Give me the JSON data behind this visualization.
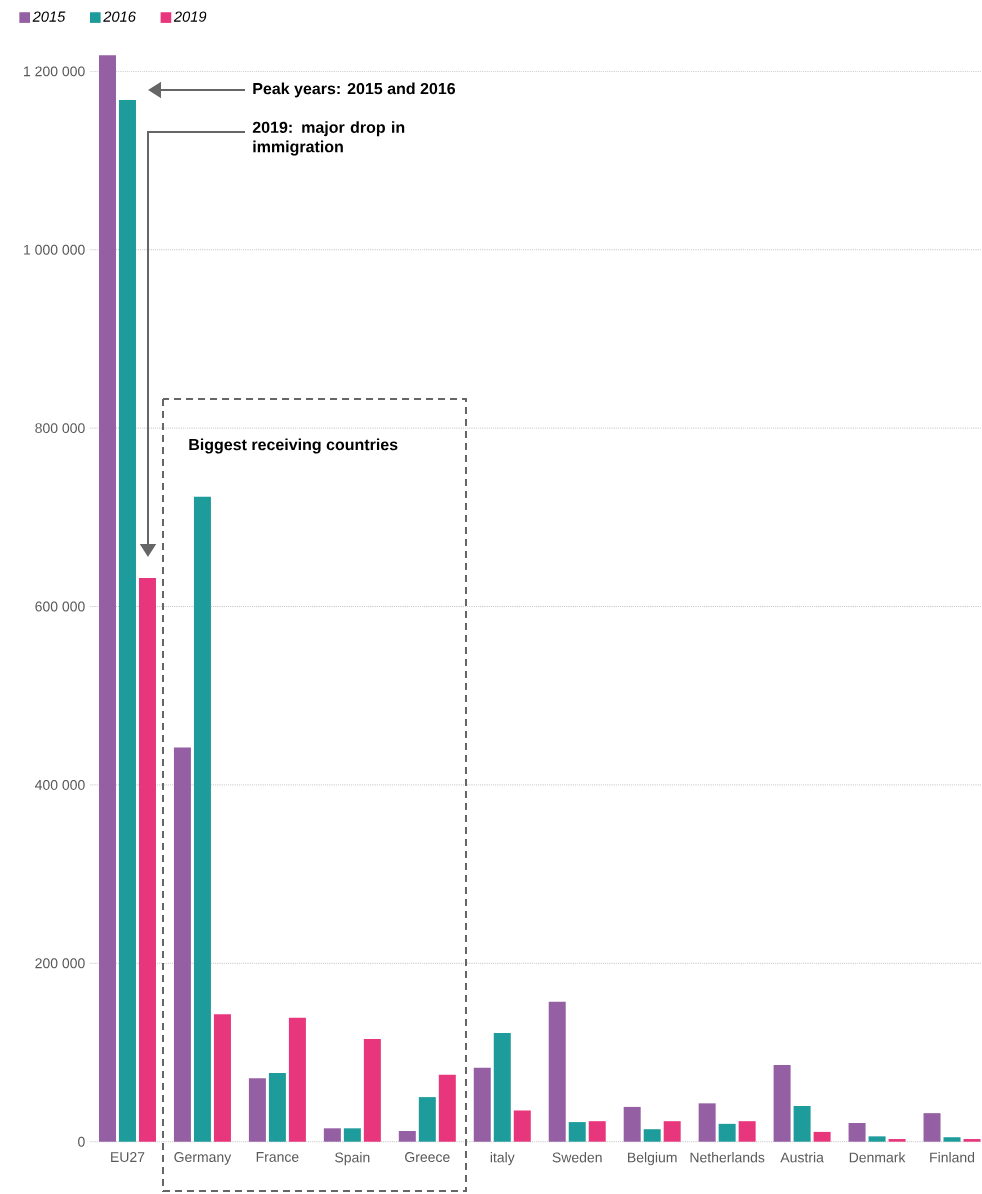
{
  "chart_data": {
    "type": "bar",
    "categories": [
      "EU27",
      "Germany",
      "France",
      "Spain",
      "Greece",
      "italy",
      "Sweden",
      "Belgium",
      "Netherlands",
      "Austria",
      "Denmark",
      "Finland"
    ],
    "series": [
      {
        "name": "2015",
        "color": "#955fa3",
        "values": [
          1218000,
          442000,
          71000,
          15000,
          12000,
          83000,
          157000,
          39000,
          43000,
          86000,
          21000,
          32000
        ]
      },
      {
        "name": "2016",
        "color": "#1e9b9b",
        "values": [
          1168000,
          723000,
          77000,
          15000,
          50000,
          122000,
          22000,
          14000,
          20000,
          40000,
          6000,
          5000
        ]
      },
      {
        "name": "2019",
        "color": "#e8367c",
        "values": [
          632000,
          143000,
          139000,
          115000,
          75000,
          35000,
          23000,
          23000,
          23000,
          11000,
          3000,
          3000
        ]
      }
    ],
    "ylim": [
      0,
      1220000
    ],
    "yticks": [
      0,
      {
        "value": 200000,
        "label": "200 000"
      },
      {
        "value": 400000,
        "label": "400 000"
      },
      {
        "value": 600000,
        "label": "600 000"
      },
      {
        "value": 800000,
        "label": "800 000"
      },
      {
        "value": 1000000,
        "label": "1 000 000"
      },
      {
        "value": 1200000,
        "label": "1 200 000"
      }
    ],
    "grid": "y",
    "legend": "top left",
    "annotations": [
      "Peak years: 2015 and 2016",
      "2019: major drop in immigration",
      "Biggest receiving countries"
    ]
  }
}
